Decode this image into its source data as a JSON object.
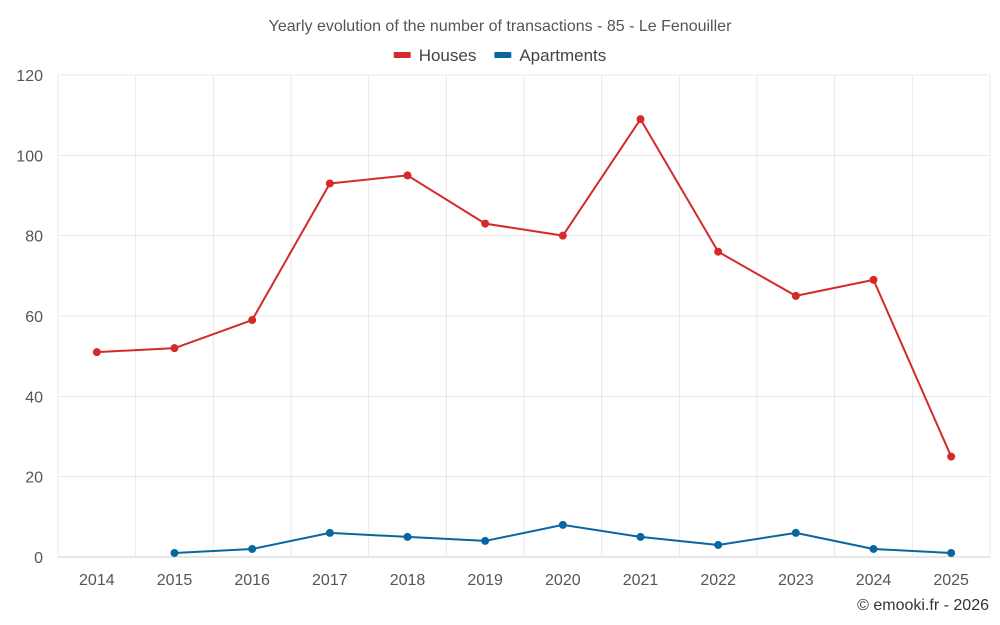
{
  "chart_data": {
    "type": "line",
    "title": "Yearly evolution of the number of transactions - 85 - Le Fenouiller",
    "categories": [
      "2014",
      "2015",
      "2016",
      "2017",
      "2018",
      "2019",
      "2020",
      "2021",
      "2022",
      "2023",
      "2024",
      "2025"
    ],
    "series": [
      {
        "name": "Houses",
        "color": "#d42a2a",
        "values": [
          51,
          52,
          59,
          93,
          95,
          83,
          80,
          109,
          76,
          65,
          69,
          25
        ]
      },
      {
        "name": "Apartments",
        "color": "#0a66a0",
        "values": [
          null,
          1,
          2,
          6,
          5,
          4,
          8,
          5,
          3,
          6,
          2,
          1
        ]
      }
    ],
    "ylim": [
      0,
      120
    ],
    "yticks": [
      0,
      20,
      40,
      60,
      80,
      100,
      120
    ],
    "xlabel": "",
    "ylabel": "",
    "grid": true,
    "legend_position": "top-center"
  },
  "credit": "© emooki.fr - 2026"
}
